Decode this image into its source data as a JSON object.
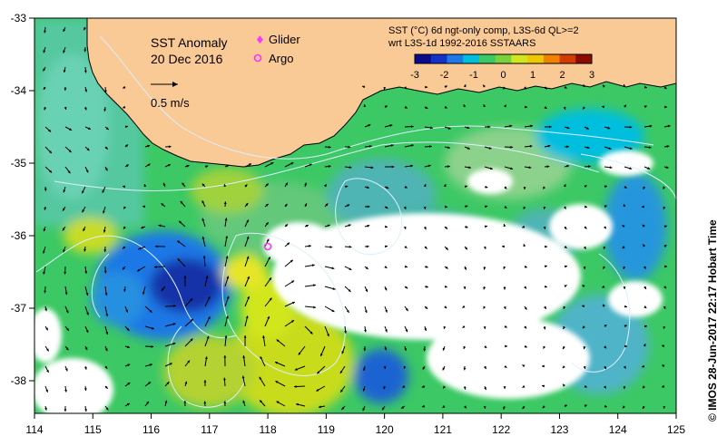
{
  "title": {
    "line1": "SST Anomaly",
    "line2": "20 Dec 2016"
  },
  "velocity_scale": {
    "label": "0.5 m/s"
  },
  "legend": {
    "glider": "Glider",
    "argo": "Argo",
    "glider_color": "#ff33ff",
    "argo_color": "#ff33ff"
  },
  "product": {
    "line1": "SST (°C) 6d ngt-only comp, L3S-6d QL>=2",
    "line2": "wrt L3S-1d 1992-2016 SSTAARS"
  },
  "colorbar": {
    "ticks": [
      "-3",
      "-2",
      "-1",
      "0",
      "1",
      "2",
      "3"
    ],
    "colors": [
      "#0a0a8c",
      "#1432c8",
      "#1e78e6",
      "#00bede",
      "#3cc864",
      "#78d23c",
      "#d2e61e",
      "#f0c800",
      "#f08200",
      "#d23c00",
      "#8c0a00"
    ]
  },
  "axes": {
    "lon_ticks": [
      "114",
      "115",
      "116",
      "117",
      "118",
      "119",
      "120",
      "121",
      "122",
      "123",
      "124",
      "125"
    ],
    "lat_ticks": [
      "-33",
      "-34",
      "-35",
      "-36",
      "-37",
      "-38"
    ]
  },
  "colors": {
    "land": "#f9c996",
    "ocean_base": "#3cc864",
    "no_data": "#ffffff"
  },
  "credit": "© IMOS 28-Jun-2017 22:17 Hobart Time"
}
